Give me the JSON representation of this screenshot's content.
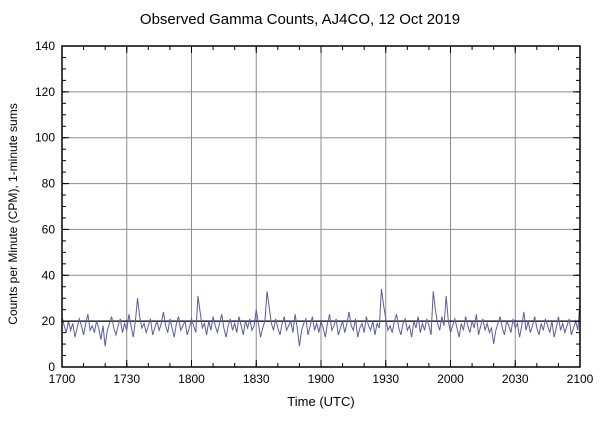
{
  "chart_data": {
    "type": "line",
    "title": "Observed Gamma Counts, AJ4CO, 12 Oct 2019",
    "xlabel": "Time (UTC)",
    "ylabel": "Counts per Minute (CPM), 1-minute sums",
    "x_tick_minutes": [
      0,
      30,
      60,
      90,
      120,
      150,
      180,
      210,
      240
    ],
    "x_tick_labels": [
      "1700",
      "1730",
      "1800",
      "1830",
      "1900",
      "1930",
      "2000",
      "2030",
      "2100"
    ],
    "x_minor_step": 10,
    "xlim_minutes": [
      0,
      240
    ],
    "y_ticks": [
      0,
      20,
      40,
      60,
      80,
      100,
      120,
      140
    ],
    "y_minor_step": 5,
    "ylim": [
      0,
      140
    ],
    "grid": true,
    "reference_line_y": 20,
    "line_color": "#5a5aaa",
    "grid_color": "#8c8c8c",
    "border_color": "#000000",
    "values": [
      22,
      18,
      15,
      20,
      16,
      19,
      13,
      17,
      21,
      18,
      14,
      19,
      23,
      16,
      18,
      15,
      20,
      17,
      12,
      18,
      9,
      16,
      19,
      22,
      17,
      14,
      18,
      21,
      15,
      19,
      16,
      23,
      18,
      13,
      20,
      30,
      22,
      17,
      19,
      15,
      18,
      21,
      14,
      17,
      20,
      16,
      19,
      24,
      18,
      15,
      21,
      17,
      13,
      19,
      22,
      16,
      18,
      20,
      14,
      17,
      21,
      18,
      15,
      31,
      24,
      17,
      19,
      14,
      20,
      16,
      22,
      18,
      15,
      19,
      23,
      17,
      13,
      18,
      21,
      16,
      19,
      15,
      22,
      18,
      14,
      20,
      17,
      21,
      16,
      18,
      25,
      19,
      13,
      17,
      20,
      33,
      26,
      19,
      16,
      21,
      17,
      14,
      19,
      22,
      16,
      18,
      20,
      15,
      23,
      17,
      9,
      16,
      19,
      21,
      14,
      18,
      22,
      16,
      19,
      15,
      20,
      17,
      13,
      19,
      23,
      16,
      18,
      21,
      14,
      17,
      20,
      15,
      19,
      24,
      18,
      16,
      21,
      13,
      17,
      19,
      15,
      22,
      18,
      16,
      20,
      14,
      19,
      17,
      34,
      27,
      21,
      16,
      18,
      15,
      20,
      23,
      17,
      14,
      19,
      21,
      16,
      18,
      13,
      20,
      17,
      22,
      15,
      19,
      16,
      21,
      18,
      14,
      33,
      25,
      19,
      16,
      22,
      18,
      31,
      20,
      15,
      18,
      21,
      17,
      13,
      19,
      16,
      22,
      18,
      15,
      20,
      17,
      23,
      14,
      18,
      21,
      16,
      19,
      15,
      17,
      10,
      16,
      19,
      22,
      17,
      14,
      20,
      18,
      15,
      21,
      17,
      19,
      13,
      18,
      24,
      16,
      20,
      15,
      18,
      22,
      17,
      14,
      19,
      16,
      21,
      18,
      15,
      20,
      13,
      17,
      22,
      16,
      19,
      15,
      18,
      21,
      14,
      17,
      20,
      16,
      29
    ]
  }
}
